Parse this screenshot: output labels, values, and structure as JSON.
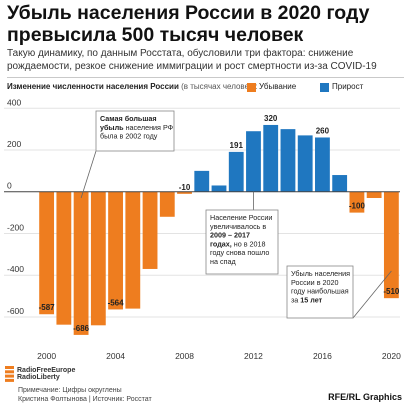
{
  "header": {
    "title": "Убыль населения России в 2020 году превысила 500 тысяч человек",
    "subtitle": "Такую динамику, по данным Росстата, обусловили три фактора: снижение рождаемости, резкое снижение иммиграции и рост смертности из-за COVID-19"
  },
  "legend": {
    "ytitle": "Изменение численности населения России",
    "yunit": "(в тысячах человек):",
    "decline": "Убывание",
    "growth": "Прирост"
  },
  "colors": {
    "decline": "#ee7d1f",
    "growth": "#1f77c0",
    "zero_line": "#444444",
    "grid": "#e3e3e3"
  },
  "chart_data": {
    "type": "bar",
    "x": [
      2000,
      2001,
      2002,
      2003,
      2004,
      2005,
      2006,
      2007,
      2008,
      2009,
      2010,
      2011,
      2012,
      2013,
      2014,
      2015,
      2016,
      2017,
      2018,
      2019,
      2020
    ],
    "values": [
      -587,
      -637,
      -686,
      -640,
      -564,
      -560,
      -370,
      -120,
      -10,
      100,
      30,
      191,
      290,
      320,
      300,
      270,
      260,
      80,
      -100,
      -30,
      -510
    ],
    "data_labels": [
      {
        "x": 2000,
        "text": "-587"
      },
      {
        "x": 2002,
        "text": "-686"
      },
      {
        "x": 2004,
        "text": "-564"
      },
      {
        "x": 2008,
        "text": "-10"
      },
      {
        "x": 2011,
        "text": "191"
      },
      {
        "x": 2013,
        "text": "320"
      },
      {
        "x": 2016,
        "text": "260"
      },
      {
        "x": 2018,
        "text": "-100"
      },
      {
        "x": 2020,
        "text": "-510"
      }
    ],
    "xticks": [
      2000,
      2004,
      2008,
      2012,
      2016,
      2020
    ],
    "yticks": [
      400,
      200,
      0,
      -200,
      -400,
      -600
    ],
    "ylim": [
      -720,
      430
    ],
    "title": "",
    "xlabel": "",
    "ylabel": "",
    "legend_position": "top-right",
    "annotations": [
      {
        "id": "note-2002",
        "parts": [
          {
            "text": "Самая большая ",
            "bold": true
          },
          {
            "text": "убыль",
            "bold": true
          },
          {
            "text": " населения РФ была в 2002 году",
            "bold": false
          }
        ]
      },
      {
        "id": "note-growth",
        "parts": [
          {
            "text": "Население России увеличивалось в ",
            "bold": false
          },
          {
            "text": "2009 – 2017 годах,",
            "bold": true
          },
          {
            "text": " но в 2018 году снова пошло на спад",
            "bold": false
          }
        ]
      },
      {
        "id": "note-2020",
        "parts": [
          {
            "text": "Убыль населения России в 2020 году наибольшая за ",
            "bold": false
          },
          {
            "text": "15 лет",
            "bold": true
          }
        ]
      }
    ]
  },
  "footer": {
    "logo_line1": "RadioFreeEurope",
    "logo_line2": "RadioLiberty",
    "note": "Примечание: Цифры округлены",
    "source": "Кристина Фолтынова | Источник: Росстат",
    "credit": "RFE/RL Graphics"
  }
}
